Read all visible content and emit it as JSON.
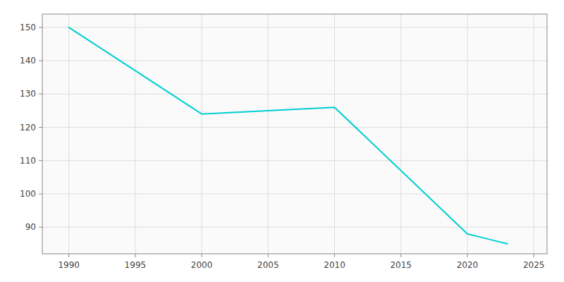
{
  "chart_data": {
    "type": "line",
    "x": [
      1990,
      2000,
      2010,
      2020,
      2021,
      2022,
      2023
    ],
    "values": [
      150,
      124,
      126,
      88,
      87,
      86,
      85
    ],
    "color": "#00CED1",
    "xlim": [
      1988,
      2026
    ],
    "ylim": [
      82,
      154
    ],
    "xticks": [
      1990,
      1995,
      2000,
      2005,
      2010,
      2015,
      2020,
      2025
    ],
    "yticks": [
      90,
      100,
      110,
      120,
      130,
      140,
      150
    ],
    "grid": true
  }
}
